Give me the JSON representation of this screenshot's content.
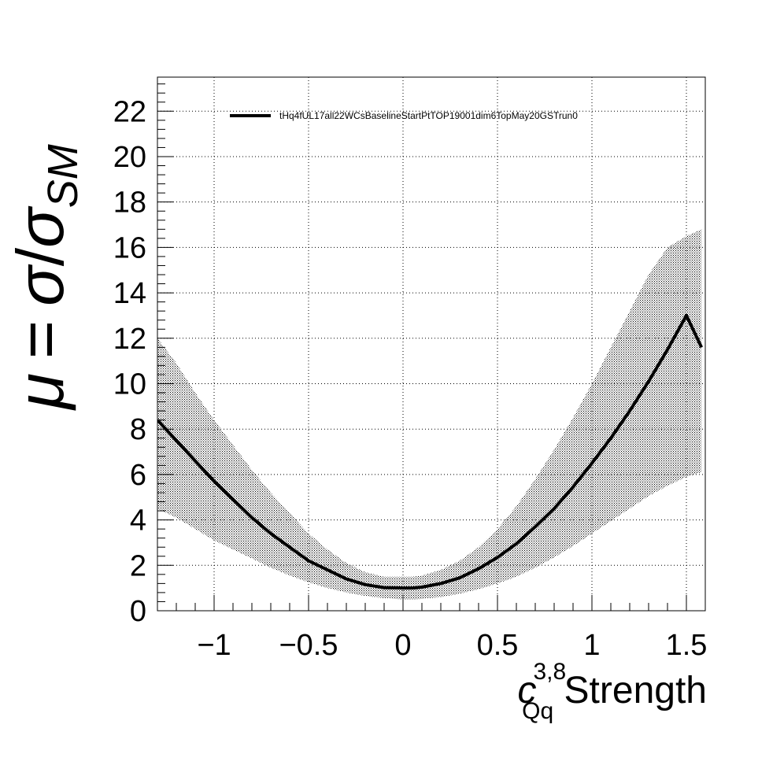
{
  "chart_data": {
    "type": "line",
    "title": "",
    "xlabel": {
      "main": "c",
      "superscript": "3,8",
      "subscript": "Qq",
      "suffix": " Strength"
    },
    "ylabel": {
      "mu": "μ",
      "equals": "=",
      "sigma": "σ",
      "slash": "/",
      "sigma2": "σ",
      "subscript": "SM"
    },
    "xlim": [
      -1.3,
      1.6
    ],
    "ylim": [
      0,
      23.5
    ],
    "x_ticks": [
      -1,
      -0.5,
      0,
      0.5,
      1,
      1.5
    ],
    "x_tick_labels": [
      "−1",
      "−0.5",
      "0",
      "0.5",
      "1",
      "1.5"
    ],
    "y_ticks": [
      0,
      2,
      4,
      6,
      8,
      10,
      12,
      14,
      16,
      18,
      20,
      22
    ],
    "y_tick_labels": [
      "0",
      "2",
      "4",
      "6",
      "8",
      "10",
      "12",
      "14",
      "16",
      "18",
      "20",
      "22"
    ],
    "grid": true,
    "legend_position": "top-left",
    "series": [
      {
        "name": "tHq4fUL17all22WCsBaselineStartPtTOP19001dim6TopMay20GSTrun0",
        "color": "#000000",
        "x": [
          -1.3,
          -1.2,
          -1.1,
          -1.0,
          -0.9,
          -0.8,
          -0.7,
          -0.6,
          -0.5,
          -0.4,
          -0.3,
          -0.2,
          -0.1,
          0.0,
          0.05,
          0.1,
          0.2,
          0.3,
          0.4,
          0.5,
          0.6,
          0.7,
          0.8,
          0.9,
          1.0,
          1.1,
          1.2,
          1.3,
          1.4,
          1.5,
          1.58
        ],
        "y": [
          8.4,
          7.5,
          6.6,
          5.7,
          4.9,
          4.1,
          3.4,
          2.8,
          2.2,
          1.8,
          1.4,
          1.15,
          1.02,
          1.0,
          1.0,
          1.04,
          1.2,
          1.45,
          1.85,
          2.35,
          2.95,
          3.7,
          4.5,
          5.45,
          6.5,
          7.6,
          8.8,
          10.1,
          11.5,
          13.0,
          11.6
        ],
        "band_lower": [
          4.5,
          4.1,
          3.6,
          3.1,
          2.7,
          2.3,
          1.9,
          1.55,
          1.25,
          1.0,
          0.8,
          0.65,
          0.55,
          0.5,
          0.5,
          0.52,
          0.6,
          0.75,
          0.95,
          1.2,
          1.5,
          1.9,
          2.35,
          2.85,
          3.4,
          3.95,
          4.5,
          5.05,
          5.5,
          5.9,
          6.1
        ],
        "band_upper": [
          12.0,
          10.9,
          9.6,
          8.4,
          7.3,
          6.2,
          5.2,
          4.3,
          3.4,
          2.7,
          2.1,
          1.7,
          1.5,
          1.5,
          1.5,
          1.55,
          1.8,
          2.2,
          2.8,
          3.6,
          4.6,
          5.8,
          7.1,
          8.5,
          10.0,
          11.6,
          13.2,
          14.8,
          16.0,
          16.5,
          16.8
        ],
        "band_fill": "dotted"
      }
    ]
  }
}
